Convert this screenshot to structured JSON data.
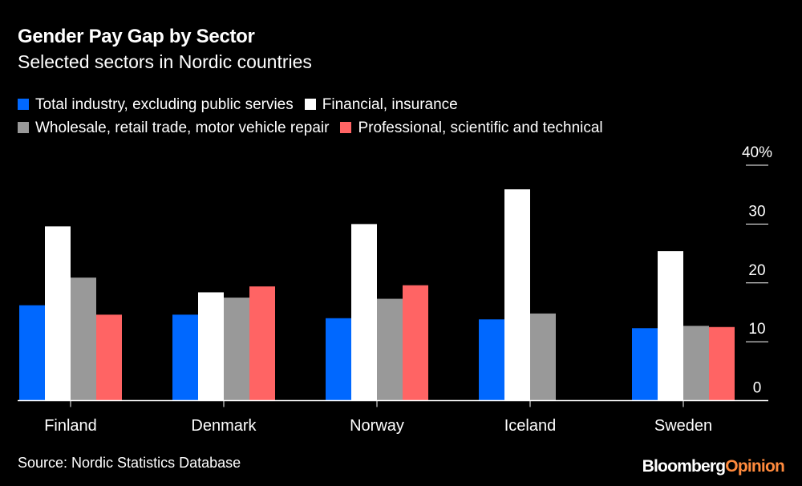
{
  "chart_data": {
    "type": "bar",
    "title": "Gender Pay Gap by Sector",
    "subtitle": "Selected sectors in Nordic countries",
    "categories": [
      "Finland",
      "Denmark",
      "Norway",
      "Iceland",
      "Sweden"
    ],
    "series": [
      {
        "name": "Total industry, excluding public servies",
        "color": "#0068ff",
        "values": [
          16.2,
          14.6,
          14.0,
          13.8,
          12.3
        ]
      },
      {
        "name": "Financial, insurance",
        "color": "#ffffff",
        "values": [
          29.6,
          18.4,
          30.0,
          35.9,
          25.4
        ]
      },
      {
        "name": "Wholesale, retail trade, motor vehicle repair",
        "color": "#999999",
        "values": [
          20.9,
          17.5,
          17.3,
          14.8,
          12.7
        ]
      },
      {
        "name": "Professional, scientific and technical",
        "color": "#ff6464",
        "values": [
          14.6,
          19.4,
          19.6,
          null,
          12.5
        ]
      }
    ],
    "yticks": [
      "0",
      "10",
      "20",
      "30",
      "40%"
    ],
    "ylim": [
      0,
      40
    ],
    "legend": "top",
    "source": "Source: Nordic Statistics Database"
  },
  "brand": {
    "a": "Bloomberg",
    "b": "Opinion"
  }
}
